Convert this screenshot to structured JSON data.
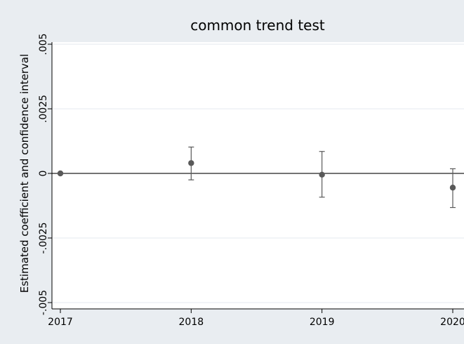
{
  "chart_data": {
    "type": "scatter",
    "title": "common trend test",
    "xlabel": "",
    "ylabel": "Estimated coefficient and confidence interval",
    "x": [
      "2017",
      "2018",
      "2019",
      "2020"
    ],
    "y": [
      0,
      0.0004,
      -5e-05,
      -0.00055
    ],
    "ci_low": [
      0,
      -0.00025,
      -0.00092,
      -0.00132
    ],
    "ci_high": [
      0,
      0.00102,
      0.00085,
      0.00018
    ],
    "yticks": [
      -0.005,
      -0.0025,
      0,
      0.0025,
      0.005
    ],
    "ytick_labels": [
      "-.005",
      "-.0025",
      "0",
      ".0025",
      ".005"
    ],
    "xticks": [
      "2017",
      "2018",
      "2019",
      "2020"
    ],
    "xlim": [
      2017,
      2020
    ],
    "ylim": [
      -0.005,
      0.005
    ],
    "grid": true,
    "reference_line_y": 0,
    "colors": {
      "background": "#e9edf1",
      "plot_area": "#ffffff",
      "grid": "#e4eaef",
      "marker": "#595959",
      "errorbar": "#595959",
      "reference_line": "#222222",
      "axis": "#000000"
    }
  }
}
